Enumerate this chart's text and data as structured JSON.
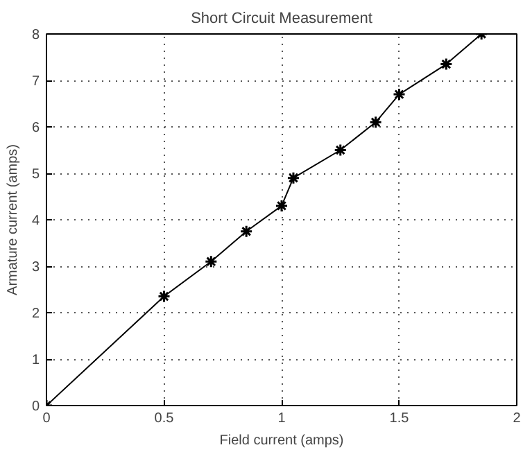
{
  "chart_data": {
    "type": "line",
    "title": "Short Circuit Measurement",
    "xlabel": "Field current (amps)",
    "ylabel": "Armature current (amps)",
    "x": [
      0,
      0.5,
      0.7,
      0.85,
      1.0,
      1.05,
      1.25,
      1.4,
      1.5,
      1.7,
      1.85
    ],
    "series": [
      {
        "color": "#000000",
        "values": [
          0,
          2.35,
          3.1,
          3.75,
          4.3,
          4.9,
          5.5,
          6.1,
          6.7,
          7.35,
          8.0
        ]
      }
    ],
    "xlim": [
      0,
      2
    ],
    "xticks": [
      0,
      0.5,
      1,
      1.5,
      2
    ],
    "ylim": [
      0,
      8
    ],
    "yticks": [
      0,
      1,
      2,
      3,
      4,
      5,
      6,
      7,
      8
    ],
    "grid": true,
    "marker": "cross",
    "line_style": "solid"
  }
}
